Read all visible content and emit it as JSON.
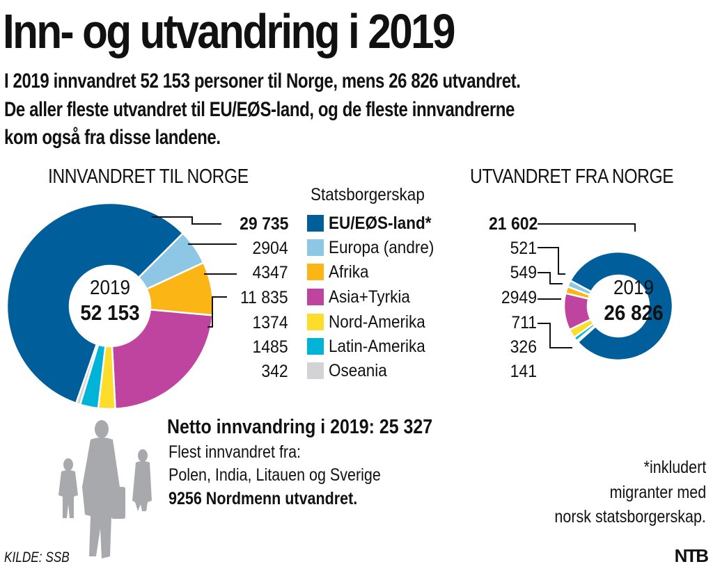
{
  "header": {
    "title": "Inn- og utvandring i 2019",
    "subtitle_lines": [
      "I 2019 innvandret 52 153 personer til Norge, mens 26 826 utvandret.",
      "De aller fleste utvandret til EU/EØS-land, og de fleste innvandrerne",
      "kom også fra disse landene."
    ]
  },
  "legend": {
    "title": "Statsborgerskap",
    "items": [
      {
        "label": "EU/EØS-land*",
        "color": "#005f9a",
        "bold": true
      },
      {
        "label": "Europa (andre)",
        "color": "#8ec6e6",
        "bold": false
      },
      {
        "label": "Afrika",
        "color": "#fbb615",
        "bold": false
      },
      {
        "label": "Asia+Tyrkia",
        "color": "#bf44a0",
        "bold": false
      },
      {
        "label": "Nord-Amerika",
        "color": "#fddd2b",
        "bold": false
      },
      {
        "label": "Latin-Amerika",
        "color": "#00b3d7",
        "bold": false
      },
      {
        "label": "Oseania",
        "color": "#d1d3d4",
        "bold": false
      }
    ]
  },
  "chart_data": [
    {
      "type": "pie",
      "variant": "donut",
      "title": "INNVANDRET TIL NORGE",
      "center_label_year": "2019",
      "center_label_total": "52 153",
      "total": 52153,
      "categories": [
        "EU/EØS-land*",
        "Europa (andre)",
        "Afrika",
        "Asia+Tyrkia",
        "Nord-Amerika",
        "Latin-Amerika",
        "Oseania"
      ],
      "values": [
        29735,
        2904,
        4347,
        11835,
        1374,
        1485,
        342
      ],
      "value_labels": [
        "29 735",
        "2904",
        "4347",
        "11 835",
        "1374",
        "1485",
        "342"
      ]
    },
    {
      "type": "pie",
      "variant": "donut",
      "title": "UTVANDRET FRA NORGE",
      "center_label_year": "2019",
      "center_label_total": "26 826",
      "total": 26826,
      "categories": [
        "EU/EØS-land*",
        "Europa (andre)",
        "Afrika",
        "Asia+Tyrkia",
        "Nord-Amerika",
        "Latin-Amerika",
        "Oseania"
      ],
      "values": [
        21602,
        521,
        549,
        2949,
        711,
        326,
        141
      ],
      "value_labels": [
        "21 602",
        "521",
        "549",
        "2949",
        "711",
        "326",
        "141"
      ]
    }
  ],
  "summary": {
    "netto_title": "Netto innvandring i 2019: 25 327",
    "line1": "Flest innvandret fra:",
    "line2": "Polen, India, Litauen og Sverige",
    "line3": "9256 Nordmenn utvandret."
  },
  "footnote": {
    "lines": [
      "*inkludert",
      "migranter med",
      "norsk statsborgerskap."
    ]
  },
  "source": "KILDE: SSB",
  "logo": "NTB",
  "decor": {
    "silhouette_color": "#a7a9ac"
  }
}
